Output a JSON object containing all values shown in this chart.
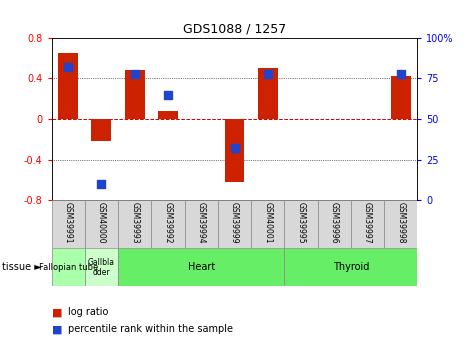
{
  "title": "GDS1088 / 1257",
  "samples": [
    "GSM39991",
    "GSM40000",
    "GSM39993",
    "GSM39992",
    "GSM39994",
    "GSM39999",
    "GSM40001",
    "GSM39995",
    "GSM39996",
    "GSM39997",
    "GSM39998"
  ],
  "log_ratio": [
    0.65,
    -0.22,
    0.48,
    0.08,
    0.0,
    -0.62,
    0.5,
    0.0,
    0.0,
    0.0,
    0.42
  ],
  "percentile_rank": [
    82,
    10,
    78,
    65,
    null,
    32,
    78,
    null,
    null,
    null,
    78
  ],
  "ylim": [
    -0.8,
    0.8
  ],
  "yticks_left": [
    -0.8,
    -0.4,
    0.0,
    0.4,
    0.8
  ],
  "yticks_right": [
    0,
    25,
    50,
    75,
    100
  ],
  "bar_color": "#cc2200",
  "dot_color": "#2244cc",
  "dot_size": 30,
  "zero_line_color": "#cc0000",
  "grid_color": "#000000",
  "tissue_layout": [
    {
      "label": "Fallopian tube",
      "start": 0,
      "end": 1,
      "color": "#aaffaa",
      "fontsize": 6
    },
    {
      "label": "Gallbla\ndder",
      "start": 1,
      "end": 2,
      "color": "#ccffcc",
      "fontsize": 5.5
    },
    {
      "label": "Heart",
      "start": 2,
      "end": 7,
      "color": "#66ee66",
      "fontsize": 7
    },
    {
      "label": "Thyroid",
      "start": 7,
      "end": 11,
      "color": "#66ee66",
      "fontsize": 7
    }
  ],
  "legend_bar_label": "log ratio",
  "legend_dot_label": "percentile rank within the sample",
  "tissue_label": "tissue",
  "bar_width": 0.6,
  "sample_box_color": "#d8d8d8",
  "sample_label_fontsize": 5.5,
  "title_fontsize": 9
}
